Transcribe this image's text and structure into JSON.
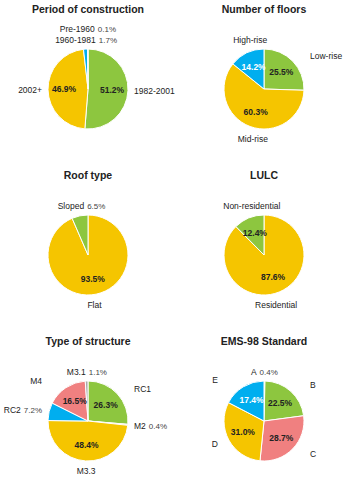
{
  "chart_data": [
    {
      "type": "pie",
      "title": "Period of construction",
      "categories": [
        "1982-2001",
        "2002+",
        "1960-1981",
        "Pre-1960"
      ],
      "values": [
        51.2,
        46.9,
        1.7,
        0.1
      ],
      "value_labels": [
        "51.2%",
        "46.9%",
        "1.7%",
        "0.1%"
      ],
      "colors": [
        "#8dc63f",
        "#f5c500",
        "#00aeef",
        "#e8e8e8"
      ],
      "data_labels": true
    },
    {
      "type": "pie",
      "title": "Number of floors",
      "categories": [
        "Low-rise",
        "Mid-rise",
        "High-rise"
      ],
      "values": [
        25.5,
        60.3,
        14.2
      ],
      "value_labels": [
        "25.5%",
        "60.3%",
        "14.2%"
      ],
      "colors": [
        "#8dc63f",
        "#f5c500",
        "#00aeef"
      ],
      "data_labels": true
    },
    {
      "type": "pie",
      "title": "Roof type",
      "categories": [
        "Flat",
        "Sloped"
      ],
      "values": [
        93.5,
        6.5
      ],
      "value_labels": [
        "93.5%",
        "6.5%"
      ],
      "colors": [
        "#f5c500",
        "#8dc63f"
      ],
      "data_labels": true
    },
    {
      "type": "pie",
      "title": "LULC",
      "categories": [
        "Residential",
        "Non-residential"
      ],
      "values": [
        87.6,
        12.4
      ],
      "value_labels": [
        "87.6%",
        "12.4%"
      ],
      "colors": [
        "#f5c500",
        "#8dc63f"
      ],
      "data_labels": true
    },
    {
      "type": "pie",
      "title": "Type of structure",
      "categories": [
        "RC1",
        "M2",
        "M3.3",
        "RC2",
        "M4",
        "M3.1"
      ],
      "values": [
        26.3,
        0.4,
        48.4,
        7.2,
        16.5,
        1.1
      ],
      "value_labels": [
        "26.3%",
        "0.4%",
        "48.4%",
        "7.2%",
        "16.5%",
        "1.1%"
      ],
      "colors": [
        "#8dc63f",
        "#f5b8c0",
        "#f5c500",
        "#00aeef",
        "#f08080",
        "#aaaaaa"
      ],
      "data_labels": true
    },
    {
      "type": "pie",
      "title": "EMS-98 Standard",
      "categories": [
        "A",
        "B",
        "C",
        "D",
        "E"
      ],
      "values": [
        0.4,
        22.5,
        28.7,
        31.0,
        17.4
      ],
      "value_labels": [
        "0.4%",
        "22.5%",
        "28.7%",
        "31.0%",
        "17.4%"
      ],
      "colors": [
        "#f5c500",
        "#8dc63f",
        "#f08080",
        "#f5c500",
        "#00aeef"
      ],
      "data_labels": true
    }
  ]
}
